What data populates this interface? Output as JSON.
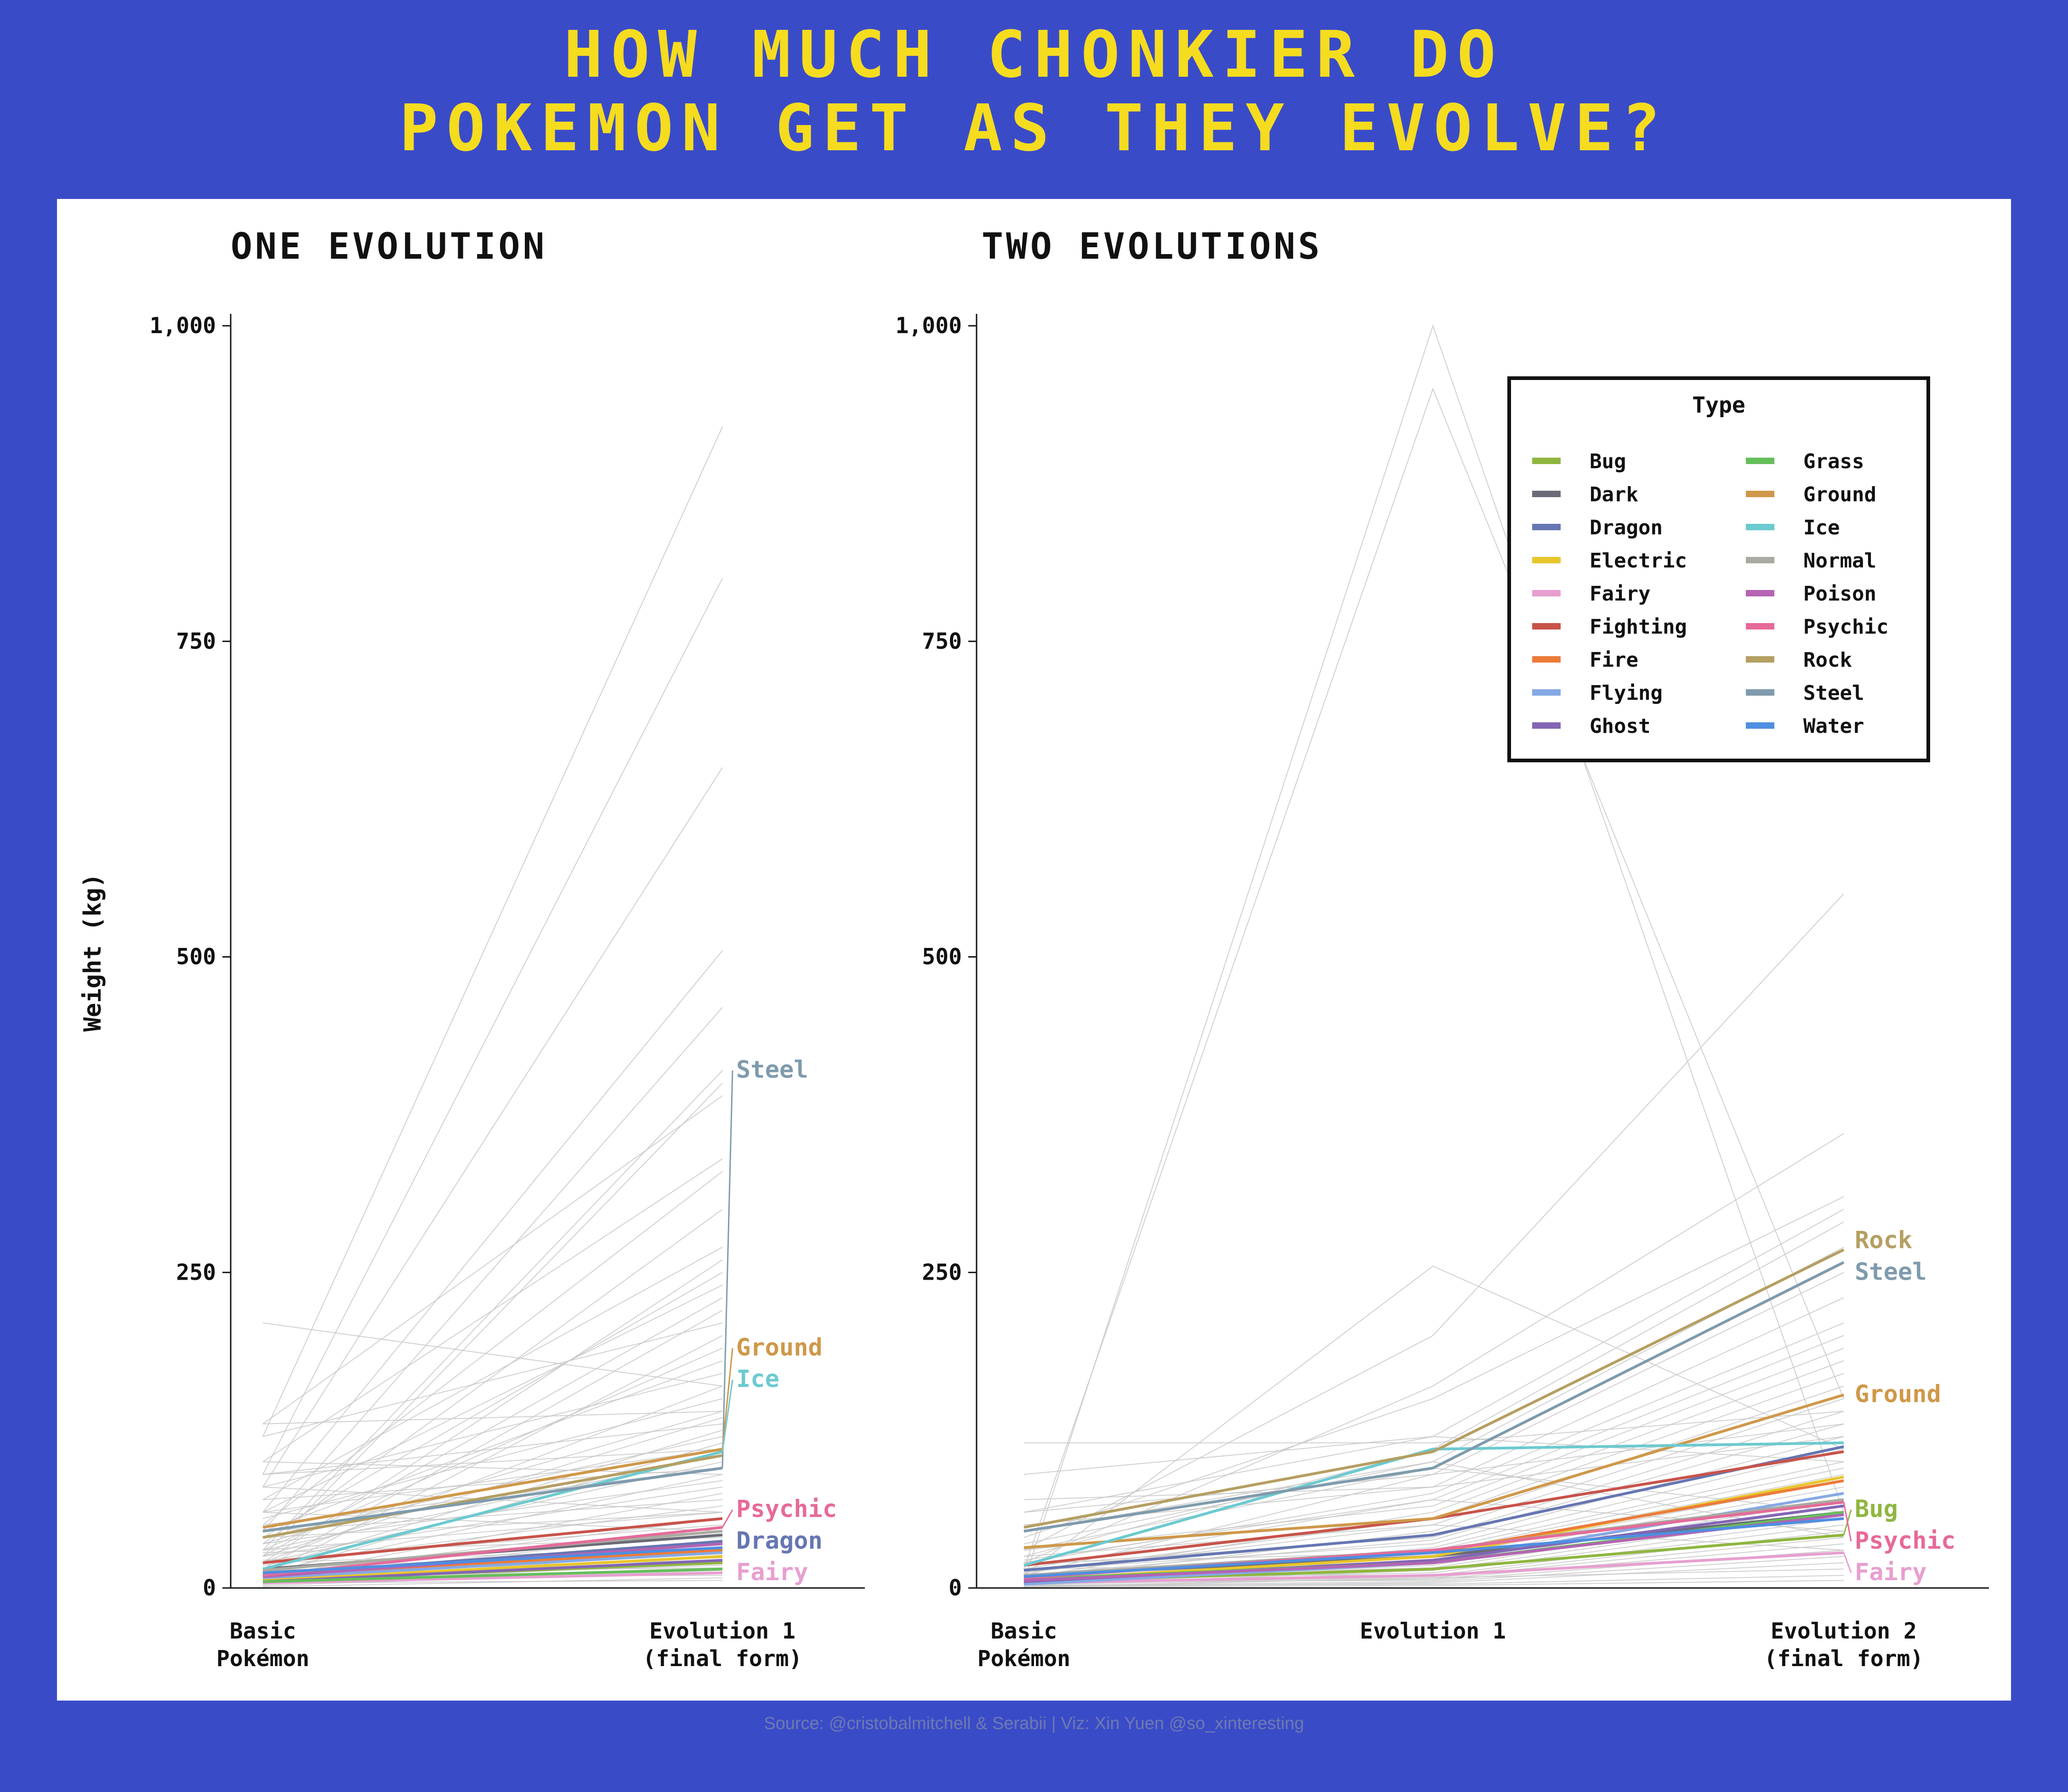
{
  "title_lines": [
    "HOW MUCH CHONKIER DO",
    "POKEMON GET AS THEY EVOLVE?"
  ],
  "source": "Source: @cristobalmitchell & Serabii  |  Viz: Xin Yuen @so_xinteresting",
  "colors": {
    "background": "#3a4bc8",
    "title": "#f5dc1f",
    "panel": "#ffffff",
    "background_lines": "#c8c8c8",
    "types": {
      "Bug": "#8fb63f",
      "Dark": "#6b6b78",
      "Dragon": "#6676b2",
      "Electric": "#e8c52b",
      "Fairy": "#e79fd0",
      "Fighting": "#c8534a",
      "Fire": "#ec7b3a",
      "Flying": "#86a9e4",
      "Ghost": "#8366b5",
      "Grass": "#64bf5a",
      "Ground": "#cf9849",
      "Ice": "#6ccad0",
      "Normal": "#a9aba1",
      "Poison": "#b563b3",
      "Psychic": "#e66a99",
      "Rock": "#b59f62",
      "Steel": "#7f9bad",
      "Water": "#4f8ee0"
    }
  },
  "legend": {
    "title": "Type",
    "items": [
      "Bug",
      "Dark",
      "Dragon",
      "Electric",
      "Fairy",
      "Fighting",
      "Fire",
      "Flying",
      "Ghost",
      "Grass",
      "Ground",
      "Ice",
      "Normal",
      "Poison",
      "Psychic",
      "Rock",
      "Steel",
      "Water"
    ]
  },
  "chart_data": [
    {
      "type": "line",
      "title": "ONE EVOLUTION",
      "ylabel": "Weight (kg)",
      "categories": [
        "Basic\nPokémon",
        "Evolution 1\n(final form)"
      ],
      "ylim": [
        0,
        1000
      ],
      "yticks": [
        0,
        250,
        500,
        750,
        1000
      ],
      "ytick_labels": [
        "0",
        "250",
        "500",
        "750",
        "1,000"
      ],
      "series": [
        {
          "name": "Bug",
          "values": [
            6,
            20
          ]
        },
        {
          "name": "Dark",
          "values": [
            15,
            42
          ]
        },
        {
          "name": "Dragon",
          "values": [
            10,
            37
          ]
        },
        {
          "name": "Electric",
          "values": [
            6,
            25
          ]
        },
        {
          "name": "Fairy",
          "values": [
            4,
            12
          ]
        },
        {
          "name": "Fighting",
          "values": [
            20,
            55
          ]
        },
        {
          "name": "Fire",
          "values": [
            10,
            30
          ]
        },
        {
          "name": "Flying",
          "values": [
            8,
            28
          ]
        },
        {
          "name": "Ghost",
          "values": [
            5,
            22
          ]
        },
        {
          "name": "Grass",
          "values": [
            5,
            15
          ]
        },
        {
          "name": "Ground",
          "values": [
            48,
            110
          ]
        },
        {
          "name": "Ice",
          "values": [
            15,
            108
          ]
        },
        {
          "name": "Normal",
          "values": [
            14,
            45
          ]
        },
        {
          "name": "Poison",
          "values": [
            9,
            35
          ]
        },
        {
          "name": "Psychic",
          "values": [
            10,
            48
          ]
        },
        {
          "name": "Rock",
          "values": [
            40,
            105
          ]
        },
        {
          "name": "Steel",
          "values": [
            45,
            95
          ]
        },
        {
          "name": "Water",
          "values": [
            12,
            32
          ]
        }
      ],
      "annotations": [
        {
          "text": "Steel",
          "series": "Steel",
          "y": 410
        },
        {
          "text": "Ground",
          "series": "Ground",
          "y": 190
        },
        {
          "text": "Ice",
          "series": "Ice",
          "y": 165
        },
        {
          "text": "Psychic",
          "series": "Psychic",
          "y": 62
        },
        {
          "text": "Dragon",
          "series": "Dragon",
          "y": 37
        },
        {
          "text": "Fairy",
          "series": "Fairy",
          "y": 12
        }
      ],
      "background_lines": [
        [
          210,
          160
        ],
        [
          120,
          920
        ],
        [
          90,
          800
        ],
        [
          80,
          650
        ],
        [
          60,
          505
        ],
        [
          45,
          460
        ],
        [
          30,
          410
        ],
        [
          25,
          400
        ],
        [
          130,
          390
        ],
        [
          100,
          340
        ],
        [
          50,
          330
        ],
        [
          35,
          300
        ],
        [
          70,
          270
        ],
        [
          20,
          260
        ],
        [
          40,
          250
        ],
        [
          60,
          240
        ],
        [
          25,
          230
        ],
        [
          15,
          220
        ],
        [
          120,
          210
        ],
        [
          10,
          200
        ],
        [
          30,
          190
        ],
        [
          45,
          180
        ],
        [
          80,
          170
        ],
        [
          20,
          160
        ],
        [
          55,
          150
        ],
        [
          35,
          140
        ],
        [
          25,
          135
        ],
        [
          90,
          130
        ],
        [
          15,
          125
        ],
        [
          40,
          120
        ],
        [
          10,
          115
        ],
        [
          60,
          110
        ],
        [
          30,
          105
        ],
        [
          20,
          100
        ],
        [
          50,
          95
        ],
        [
          12,
          90
        ],
        [
          35,
          85
        ],
        [
          25,
          80
        ],
        [
          8,
          75
        ],
        [
          45,
          70
        ],
        [
          18,
          65
        ],
        [
          30,
          60
        ],
        [
          10,
          55
        ],
        [
          22,
          50
        ],
        [
          6,
          45
        ],
        [
          15,
          42
        ],
        [
          28,
          40
        ],
        [
          5,
          38
        ],
        [
          12,
          35
        ],
        [
          20,
          32
        ],
        [
          8,
          30
        ],
        [
          16,
          28
        ],
        [
          4,
          26
        ],
        [
          10,
          24
        ],
        [
          14,
          22
        ],
        [
          3,
          20
        ],
        [
          7,
          18
        ],
        [
          12,
          16
        ],
        [
          2,
          14
        ],
        [
          5,
          12
        ],
        [
          9,
          10
        ],
        [
          1,
          8
        ],
        [
          4,
          6
        ],
        [
          100,
          90
        ],
        [
          80,
          60
        ],
        [
          60,
          45
        ],
        [
          130,
          140
        ],
        [
          70,
          95
        ],
        [
          40,
          60
        ],
        [
          90,
          110
        ]
      ]
    },
    {
      "type": "line",
      "title": "TWO EVOLUTIONS",
      "categories": [
        "Basic\nPokémon",
        "Evolution 1",
        "Evolution 2\n(final form)"
      ],
      "ylim": [
        0,
        1000
      ],
      "yticks": [
        0,
        250,
        500,
        750,
        1000
      ],
      "ytick_labels": [
        "0",
        "250",
        "500",
        "750",
        "1,000"
      ],
      "series": [
        {
          "name": "Bug",
          "values": [
            5,
            15,
            42
          ]
        },
        {
          "name": "Dark",
          "values": [
            10,
            25,
            60
          ]
        },
        {
          "name": "Dragon",
          "values": [
            14,
            42,
            112
          ]
        },
        {
          "name": "Electric",
          "values": [
            6,
            25,
            88
          ]
        },
        {
          "name": "Fairy",
          "values": [
            4,
            10,
            28
          ]
        },
        {
          "name": "Fighting",
          "values": [
            18,
            55,
            108
          ]
        },
        {
          "name": "Fire",
          "values": [
            9,
            28,
            85
          ]
        },
        {
          "name": "Flying",
          "values": [
            3,
            20,
            75
          ]
        },
        {
          "name": "Ghost",
          "values": [
            5,
            22,
            65
          ]
        },
        {
          "name": "Grass",
          "values": [
            7,
            20,
            60
          ]
        },
        {
          "name": "Ground",
          "values": [
            32,
            55,
            153
          ]
        },
        {
          "name": "Ice",
          "values": [
            18,
            110,
            115
          ]
        },
        {
          "name": "Normal",
          "values": [
            10,
            30,
            70
          ]
        },
        {
          "name": "Poison",
          "values": [
            6,
            20,
            58
          ]
        },
        {
          "name": "Psychic",
          "values": [
            8,
            30,
            68
          ]
        },
        {
          "name": "Rock",
          "values": [
            48,
            108,
            268
          ]
        },
        {
          "name": "Steel",
          "values": [
            45,
            95,
            258
          ]
        },
        {
          "name": "Water",
          "values": [
            9,
            28,
            55
          ]
        }
      ],
      "annotations": [
        {
          "text": "Rock",
          "series": "Rock",
          "y": 275
        },
        {
          "text": "Steel",
          "series": "Steel",
          "y": 250
        },
        {
          "text": "Ground",
          "series": "Ground",
          "y": 153
        },
        {
          "text": "Bug",
          "series": "Bug",
          "y": 62
        },
        {
          "text": "Psychic",
          "series": "Psychic",
          "y": 37
        },
        {
          "text": "Fairy",
          "series": "Fairy",
          "y": 12
        }
      ],
      "background_lines": [
        [
          5,
          1000,
          60
        ],
        [
          15,
          950,
          150
        ],
        [
          10,
          255,
          110
        ],
        [
          30,
          200,
          550
        ],
        [
          115,
          115,
          140
        ],
        [
          20,
          160,
          360
        ],
        [
          40,
          150,
          310
        ],
        [
          60,
          120,
          300
        ],
        [
          25,
          110,
          290
        ],
        [
          35,
          100,
          270
        ],
        [
          10,
          90,
          250
        ],
        [
          50,
          80,
          230
        ],
        [
          20,
          75,
          210
        ],
        [
          15,
          70,
          200
        ],
        [
          30,
          65,
          190
        ],
        [
          8,
          60,
          180
        ],
        [
          12,
          55,
          170
        ],
        [
          25,
          50,
          160
        ],
        [
          6,
          45,
          150
        ],
        [
          18,
          40,
          140
        ],
        [
          10,
          38,
          130
        ],
        [
          14,
          35,
          120
        ],
        [
          4,
          32,
          110
        ],
        [
          9,
          30,
          100
        ],
        [
          20,
          28,
          95
        ],
        [
          7,
          26,
          90
        ],
        [
          11,
          24,
          85
        ],
        [
          3,
          22,
          80
        ],
        [
          15,
          20,
          75
        ],
        [
          5,
          18,
          70
        ],
        [
          8,
          16,
          65
        ],
        [
          2,
          14,
          60
        ],
        [
          6,
          12,
          55
        ],
        [
          10,
          10,
          50
        ],
        [
          4,
          9,
          45
        ],
        [
          1,
          8,
          40
        ],
        [
          3,
          7,
          35
        ],
        [
          5,
          6,
          30
        ],
        [
          2,
          5,
          25
        ],
        [
          1,
          4,
          20
        ],
        [
          30,
          95,
          60
        ],
        [
          45,
          100,
          40
        ],
        [
          70,
          80,
          120
        ],
        [
          12,
          50,
          30
        ],
        [
          22,
          70,
          45
        ],
        [
          2,
          3,
          10
        ],
        [
          1,
          2,
          6
        ],
        [
          4,
          8,
          15
        ],
        [
          90,
          120,
          100
        ],
        [
          60,
          90,
          130
        ]
      ]
    }
  ]
}
